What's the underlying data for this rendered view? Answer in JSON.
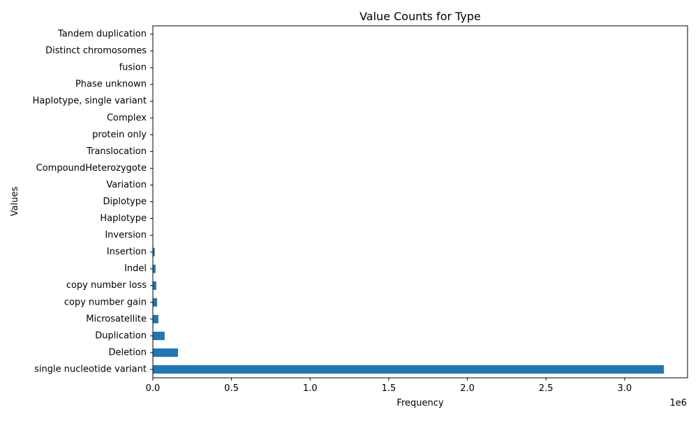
{
  "chart_data": {
    "type": "bar",
    "orientation": "horizontal",
    "title": "Value Counts for Type",
    "xlabel": "Frequency",
    "ylabel": "Values",
    "x_offset_label": "1e6",
    "x_scale_factor": 1000000,
    "xlim": [
      0,
      3400000
    ],
    "xticks": [
      0,
      500000,
      1000000,
      1500000,
      2000000,
      2500000,
      3000000
    ],
    "xtick_labels": [
      "0.0",
      "0.5",
      "1.0",
      "1.5",
      "2.0",
      "2.5",
      "3.0"
    ],
    "grid": false,
    "legend": "none",
    "bar_color": "#1f77b4",
    "categories": [
      "single nucleotide variant",
      "Deletion",
      "Duplication",
      "Microsatellite",
      "copy number gain",
      "copy number loss",
      "Indel",
      "Insertion",
      "Inversion",
      "Haplotype",
      "Diplotype",
      "Variation",
      "CompoundHeterozygote",
      "Translocation",
      "protein only",
      "Complex",
      "Haplotype, single variant",
      "Phase unknown",
      "fusion",
      "Distinct chromosomes",
      "Tandem duplication"
    ],
    "values": [
      3250000,
      160000,
      75000,
      35000,
      27000,
      22000,
      17000,
      12000,
      1500,
      1000,
      800,
      700,
      600,
      300,
      200,
      150,
      100,
      80,
      50,
      30,
      10
    ]
  }
}
